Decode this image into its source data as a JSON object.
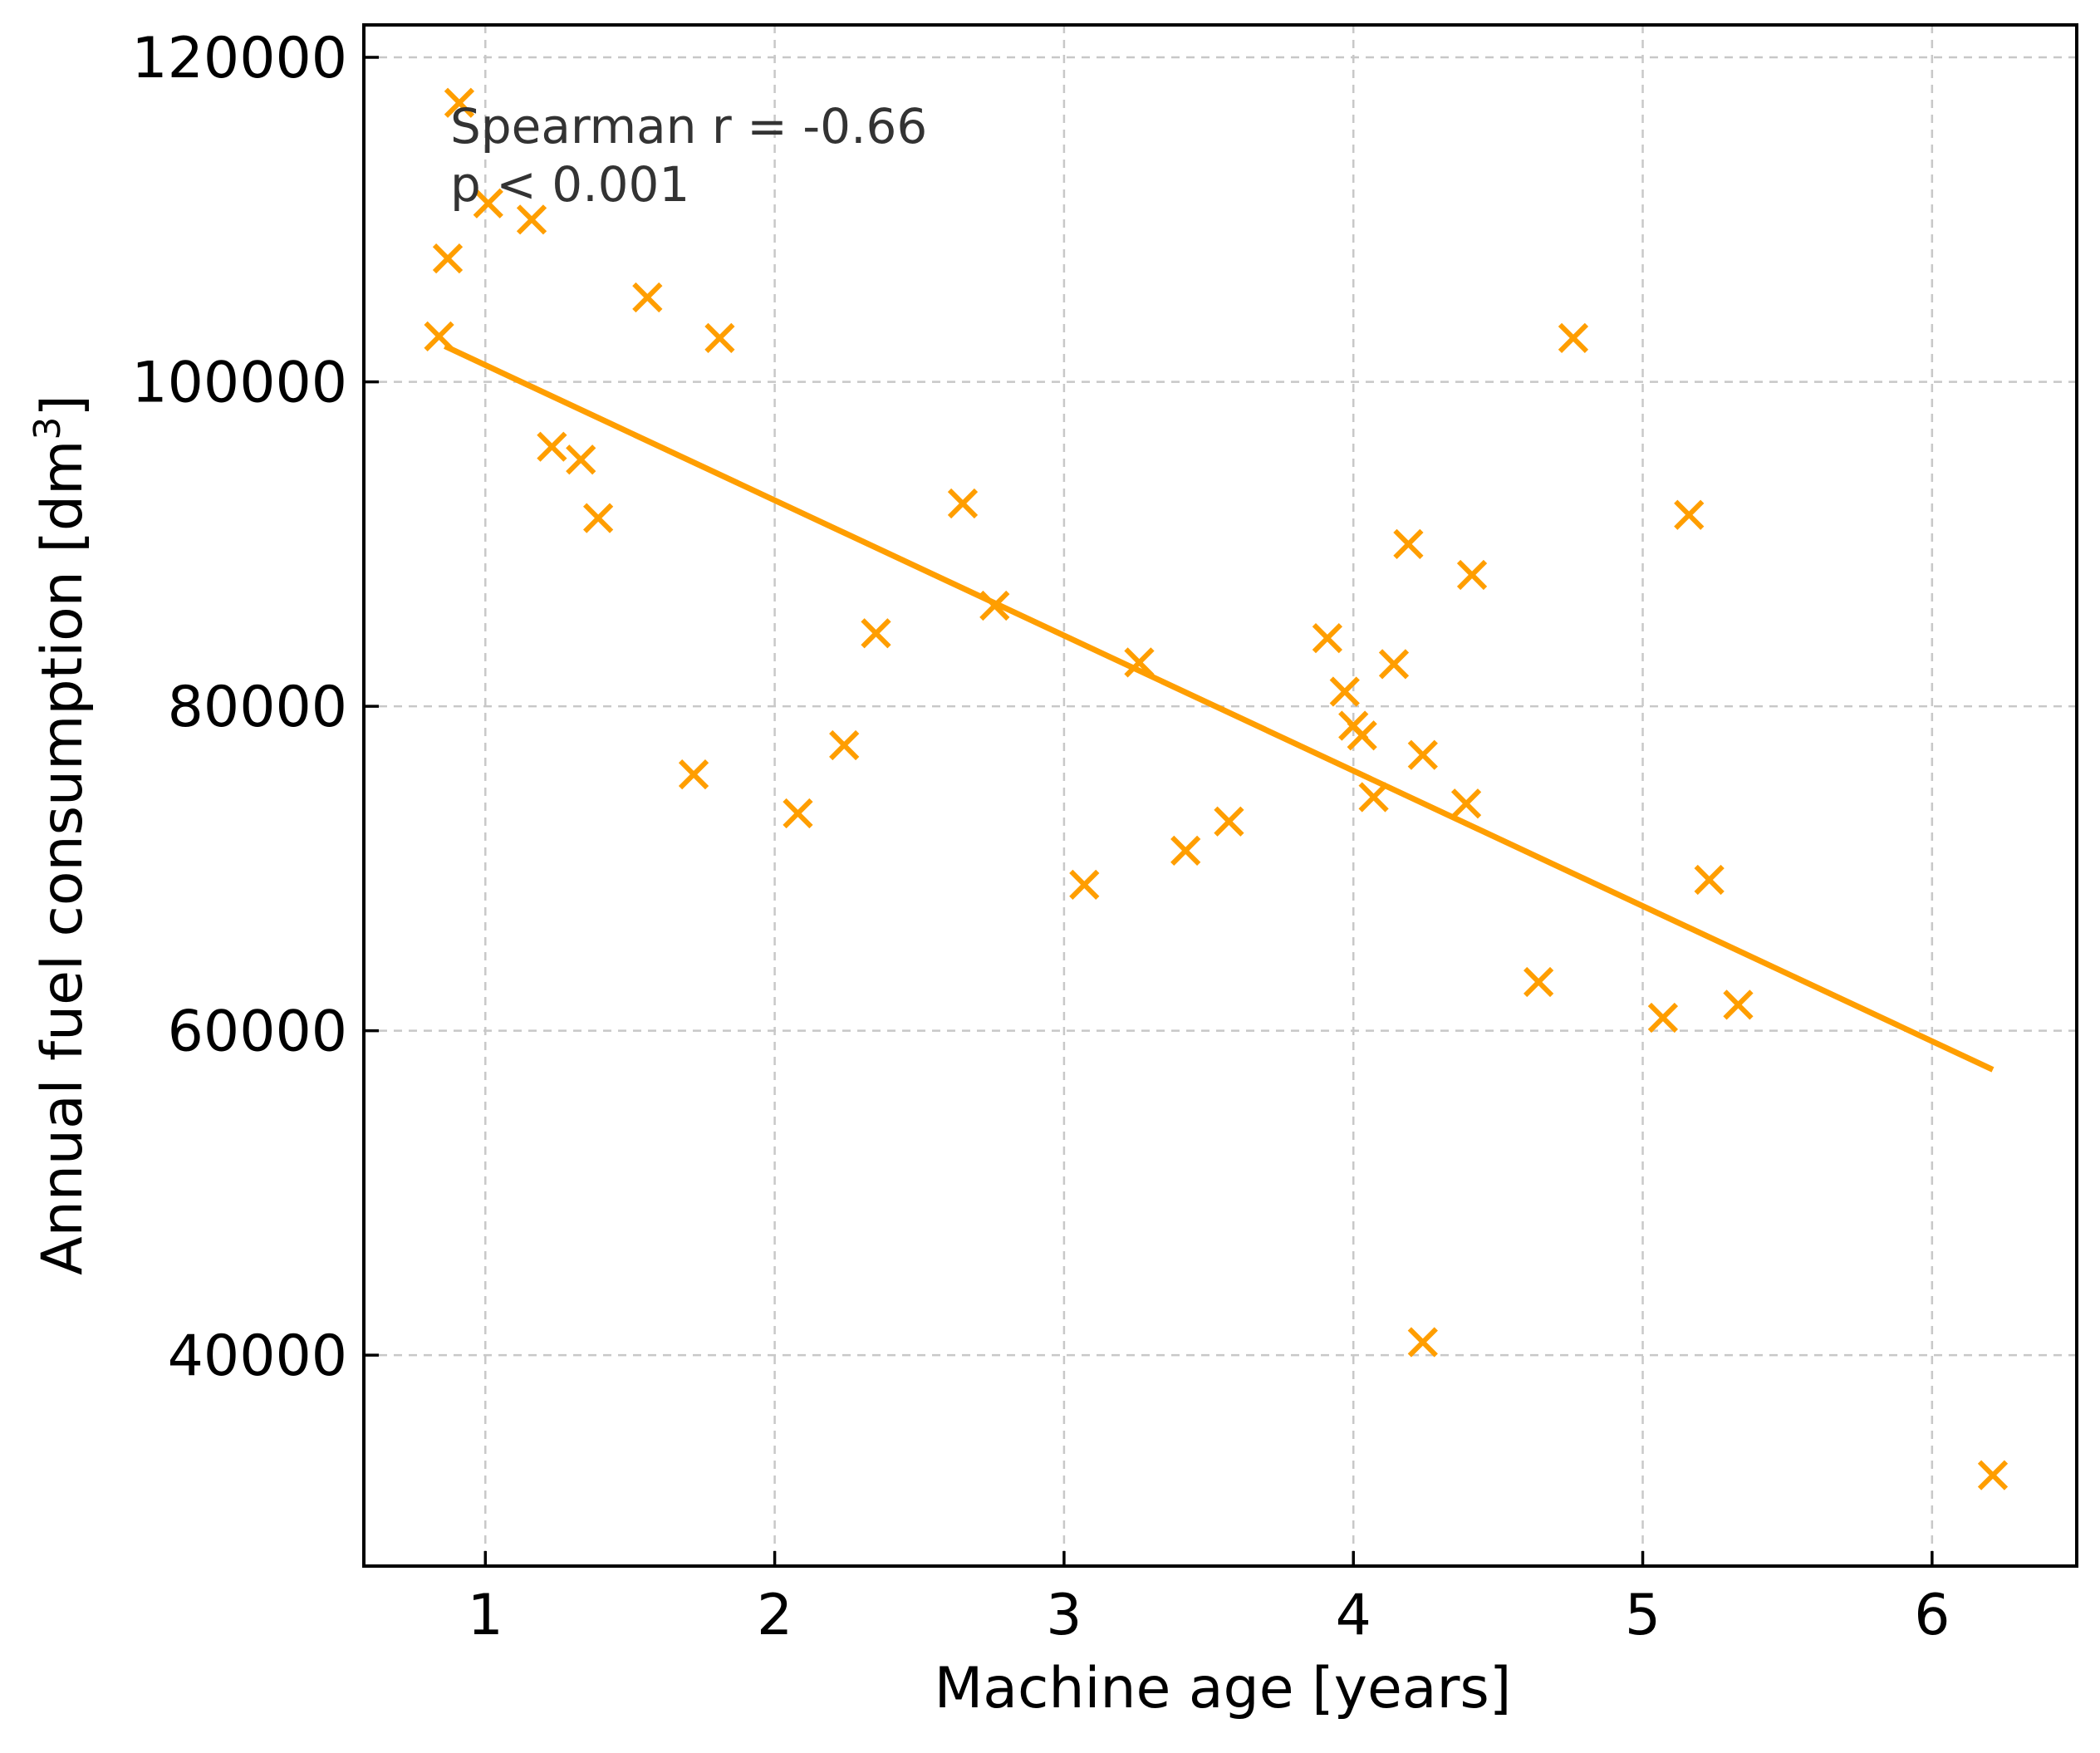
{
  "chart_data": {
    "type": "scatter",
    "title": "",
    "xlabel": "Machine age [years]",
    "ylabel_text": "Annual fuel consumption [dm",
    "ylabel_sup": "3",
    "ylabel_close": "]",
    "xlim": [
      0.58,
      6.5
    ],
    "ylim": [
      27000,
      122000
    ],
    "xticks": [
      1,
      2,
      3,
      4,
      5,
      6
    ],
    "yticks": [
      40000,
      60000,
      80000,
      100000,
      120000
    ],
    "grid": true,
    "marker": "x",
    "color": "#FF9E00",
    "annotation": [
      "Spearman r = -0.66",
      "p < 0.001"
    ],
    "points": [
      {
        "x": 0.91,
        "y": 117200
      },
      {
        "x": 1.01,
        "y": 111000
      },
      {
        "x": 1.16,
        "y": 110000
      },
      {
        "x": 0.87,
        "y": 107600
      },
      {
        "x": 1.56,
        "y": 105200
      },
      {
        "x": 0.84,
        "y": 102800
      },
      {
        "x": 1.81,
        "y": 102700
      },
      {
        "x": 4.76,
        "y": 102700
      },
      {
        "x": 1.23,
        "y": 96000
      },
      {
        "x": 1.33,
        "y": 95200
      },
      {
        "x": 1.39,
        "y": 91600
      },
      {
        "x": 2.65,
        "y": 92500
      },
      {
        "x": 5.16,
        "y": 91800
      },
      {
        "x": 4.19,
        "y": 90000
      },
      {
        "x": 4.41,
        "y": 88100
      },
      {
        "x": 2.76,
        "y": 86200
      },
      {
        "x": 2.35,
        "y": 84500
      },
      {
        "x": 3.91,
        "y": 84200
      },
      {
        "x": 3.26,
        "y": 82700
      },
      {
        "x": 4.14,
        "y": 82600
      },
      {
        "x": 3.97,
        "y": 80900
      },
      {
        "x": 4.0,
        "y": 78800
      },
      {
        "x": 4.03,
        "y": 78200
      },
      {
        "x": 2.24,
        "y": 77600
      },
      {
        "x": 4.24,
        "y": 77000
      },
      {
        "x": 1.72,
        "y": 75800
      },
      {
        "x": 4.07,
        "y": 74400
      },
      {
        "x": 4.39,
        "y": 74000
      },
      {
        "x": 2.08,
        "y": 73400
      },
      {
        "x": 3.57,
        "y": 72900
      },
      {
        "x": 3.42,
        "y": 71100
      },
      {
        "x": 3.07,
        "y": 69000
      },
      {
        "x": 5.23,
        "y": 69300
      },
      {
        "x": 4.64,
        "y": 63000
      },
      {
        "x": 5.33,
        "y": 61600
      },
      {
        "x": 5.07,
        "y": 60800
      },
      {
        "x": 4.24,
        "y": 40800
      },
      {
        "x": 6.21,
        "y": 32600
      }
    ],
    "trend_line": {
      "x": [
        0.86,
        6.21
      ],
      "y": [
        102200,
        57600
      ]
    }
  }
}
